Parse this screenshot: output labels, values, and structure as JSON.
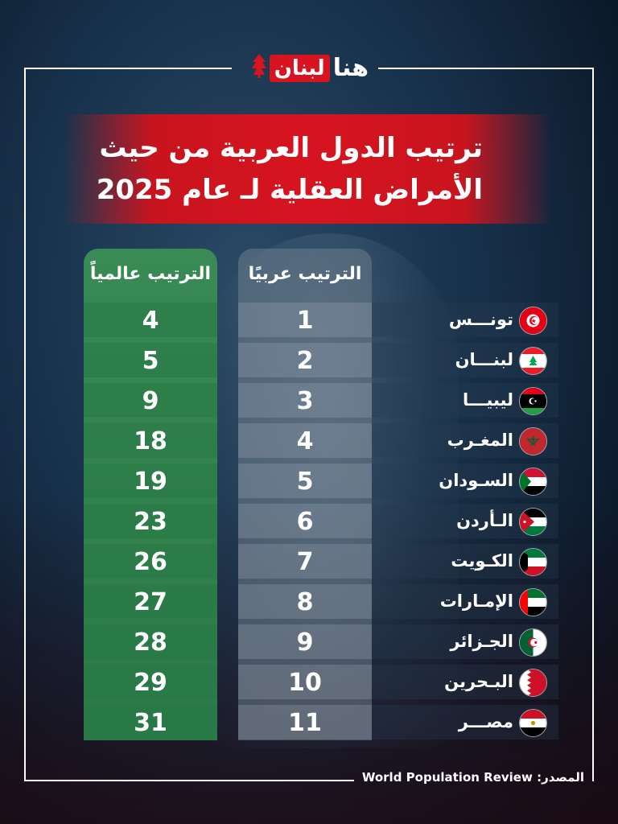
{
  "logo": {
    "hana": "هنا",
    "lebnan": "لبنان",
    "cedar_icon": "cedar-icon"
  },
  "title": {
    "line1": "ترتيب الدول العربية من حيث",
    "line2": "الأمراض العقلية لـ عام 2025"
  },
  "headers": {
    "world": "الترتيب عالمياً",
    "arab": "الترتيب عربيًا"
  },
  "rows": [
    {
      "country": "تونـــس",
      "arab_rank": "1",
      "world_rank": "4",
      "flag": "tunisia-flag-icon"
    },
    {
      "country": "لبنـــان",
      "arab_rank": "2",
      "world_rank": "5",
      "flag": "lebanon-flag-icon"
    },
    {
      "country": "ليبيـــا",
      "arab_rank": "3",
      "world_rank": "9",
      "flag": "libya-flag-icon"
    },
    {
      "country": "المغـرب",
      "arab_rank": "4",
      "world_rank": "18",
      "flag": "morocco-flag-icon"
    },
    {
      "country": "السـودان",
      "arab_rank": "5",
      "world_rank": "19",
      "flag": "sudan-flag-icon"
    },
    {
      "country": "الـأردن",
      "arab_rank": "6",
      "world_rank": "23",
      "flag": "jordan-flag-icon"
    },
    {
      "country": "الكـويت",
      "arab_rank": "7",
      "world_rank": "26",
      "flag": "kuwait-flag-icon"
    },
    {
      "country": "الإمـارات",
      "arab_rank": "8",
      "world_rank": "27",
      "flag": "uae-flag-icon"
    },
    {
      "country": "الجـزائر",
      "arab_rank": "9",
      "world_rank": "28",
      "flag": "algeria-flag-icon"
    },
    {
      "country": "البـحرين",
      "arab_rank": "10",
      "world_rank": "29",
      "flag": "bahrain-flag-icon"
    },
    {
      "country": "مصـــر",
      "arab_rank": "11",
      "world_rank": "31",
      "flag": "egypt-flag-icon"
    }
  ],
  "source": {
    "label": "المصدر:",
    "value": "World Population Review"
  },
  "colors": {
    "accent_red": "#d7141f",
    "green": "#2b7a48"
  }
}
